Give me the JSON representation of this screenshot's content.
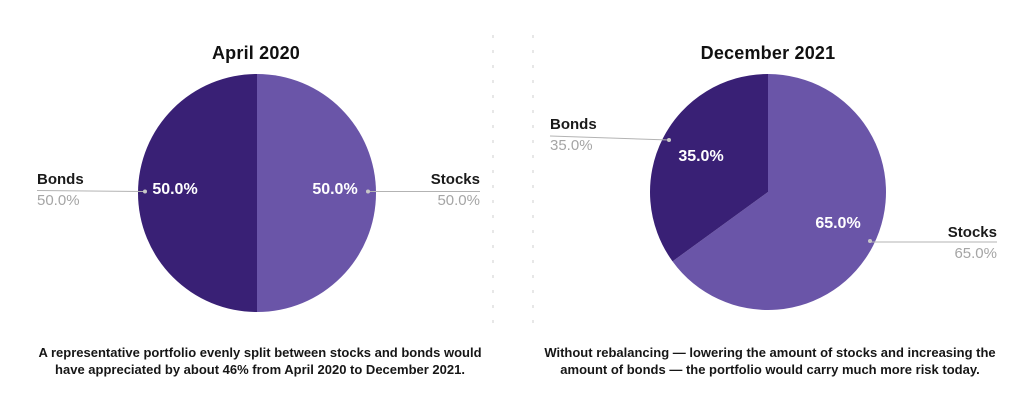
{
  "page": {
    "background": "#ffffff"
  },
  "colors": {
    "stocks_slice": "#6A55A8",
    "bonds_slice": "#392075",
    "label_name_text": "#1a1a1a",
    "label_pct_text": "#a5a5a5",
    "inner_pct_text": "#ffffff",
    "leader_line": "#b3b3b3",
    "caption_text": "#161616"
  },
  "chart_data": [
    {
      "type": "pie",
      "title": "April 2020",
      "start_angle_deg": 0,
      "direction": "clockwise",
      "legend_position": "side-callouts",
      "slices": [
        {
          "label": "Stocks",
          "value": 50.0,
          "pct_label": "50.0%",
          "color": "#6A55A8"
        },
        {
          "label": "Bonds",
          "value": 50.0,
          "pct_label": "50.0%",
          "color": "#392075"
        }
      ],
      "caption": "A representative portfolio evenly split between stocks and bonds would have appreciated by about 46% from April 2020 to December 2021."
    },
    {
      "type": "pie",
      "title": "December 2021",
      "start_angle_deg": 0,
      "direction": "clockwise",
      "legend_position": "side-callouts",
      "slices": [
        {
          "label": "Stocks",
          "value": 65.0,
          "pct_label": "65.0%",
          "color": "#6A55A8"
        },
        {
          "label": "Bonds",
          "value": 35.0,
          "pct_label": "35.0%",
          "color": "#392075"
        }
      ],
      "caption": "Without rebalancing — lowering the amount of stocks and increasing the amount of bonds — the portfolio would carry much more risk today."
    }
  ]
}
